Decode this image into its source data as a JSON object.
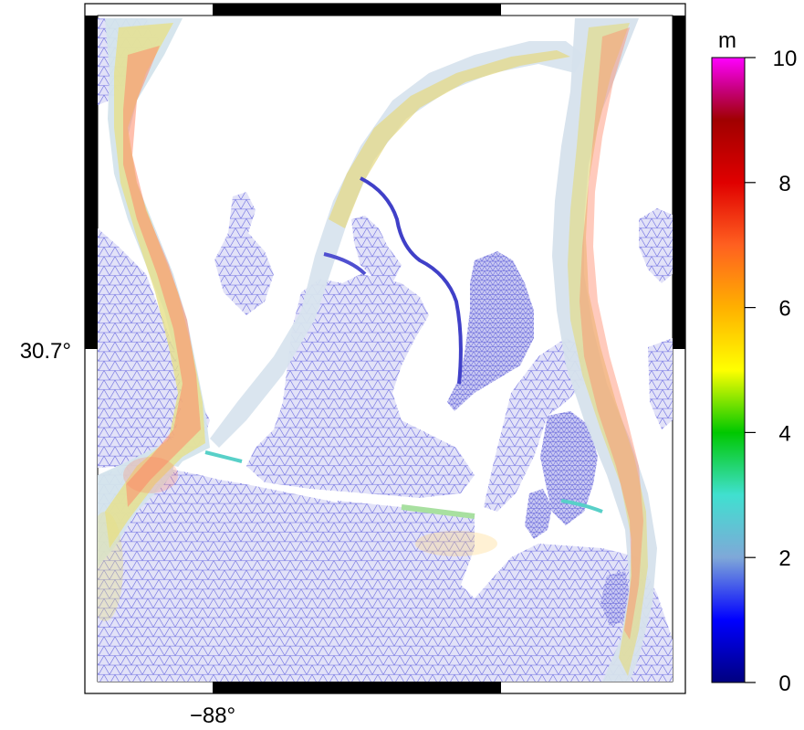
{
  "map": {
    "lat_label": "30.7°",
    "lon_label": "−88°"
  },
  "colorbar": {
    "unit": "m",
    "min": 0,
    "max": 10,
    "ticks": [
      "0",
      "2",
      "4",
      "6",
      "8",
      "10"
    ],
    "stops": [
      {
        "value": 0,
        "color": "#00007f"
      },
      {
        "value": 1,
        "color": "#0000ff"
      },
      {
        "value": 2,
        "color": "#7fa8d8"
      },
      {
        "value": 3,
        "color": "#40e0d0"
      },
      {
        "value": 4,
        "color": "#00c800"
      },
      {
        "value": 5,
        "color": "#ffff00"
      },
      {
        "value": 6,
        "color": "#ffb000"
      },
      {
        "value": 7,
        "color": "#ff6020"
      },
      {
        "value": 8,
        "color": "#e00000"
      },
      {
        "value": 9,
        "color": "#a00000"
      },
      {
        "value": 9.5,
        "color": "#c80080"
      },
      {
        "value": 10,
        "color": "#ff00ff"
      }
    ]
  },
  "colors": {
    "mesh": "#6b6be0",
    "mesh_fill": "#d7d7f6",
    "channel_warm": "#ff7a5a",
    "channel_yellow": "#e8e080",
    "channel_green": "#a8e0a0",
    "channel_cyan": "#58d0c8"
  }
}
